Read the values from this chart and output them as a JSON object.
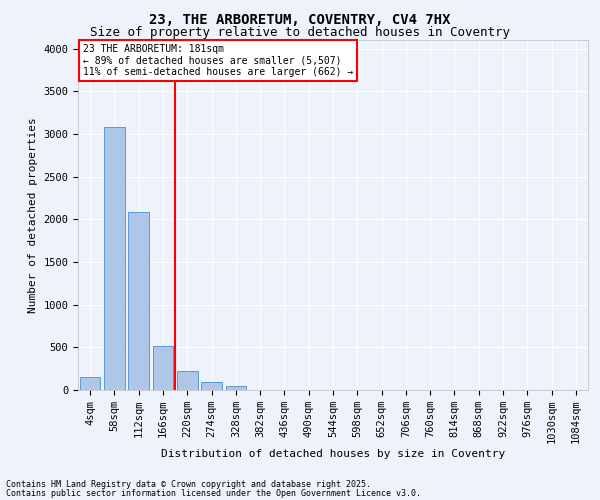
{
  "title1": "23, THE ARBORETUM, COVENTRY, CV4 7HX",
  "title2": "Size of property relative to detached houses in Coventry",
  "xlabel": "Distribution of detached houses by size in Coventry",
  "ylabel": "Number of detached properties",
  "footer1": "Contains HM Land Registry data © Crown copyright and database right 2025.",
  "footer2": "Contains public sector information licensed under the Open Government Licence v3.0.",
  "annotation_line1": "23 THE ARBORETUM: 181sqm",
  "annotation_line2": "← 89% of detached houses are smaller (5,507)",
  "annotation_line3": "11% of semi-detached houses are larger (662) →",
  "bar_color": "#aec6e8",
  "bar_edge_color": "#5b9bd5",
  "vline_color": "red",
  "categories": [
    "4sqm",
    "58sqm",
    "112sqm",
    "166sqm",
    "220sqm",
    "274sqm",
    "328sqm",
    "382sqm",
    "436sqm",
    "490sqm",
    "544sqm",
    "598sqm",
    "652sqm",
    "706sqm",
    "760sqm",
    "814sqm",
    "868sqm",
    "922sqm",
    "976sqm",
    "1030sqm",
    "1084sqm"
  ],
  "values": [
    150,
    3080,
    2080,
    520,
    220,
    90,
    50,
    5,
    0,
    0,
    0,
    0,
    0,
    0,
    0,
    0,
    0,
    0,
    0,
    0,
    0
  ],
  "ylim": [
    0,
    4100
  ],
  "yticks": [
    0,
    500,
    1000,
    1500,
    2000,
    2500,
    3000,
    3500,
    4000
  ],
  "annotation_box_color": "white",
  "annotation_box_edgecolor": "red",
  "bg_color": "#eef2fb",
  "grid_color": "white",
  "title1_fontsize": 10,
  "title2_fontsize": 9,
  "xlabel_fontsize": 8,
  "ylabel_fontsize": 8,
  "tick_fontsize": 7.5,
  "footer_fontsize": 6,
  "annot_fontsize": 7
}
